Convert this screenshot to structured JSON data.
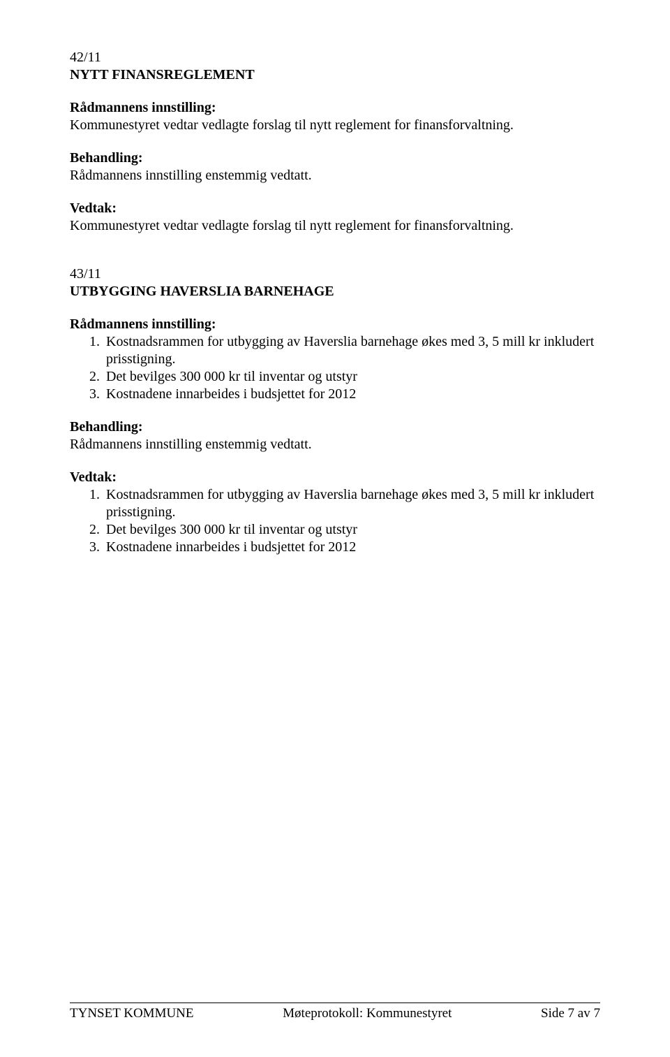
{
  "colors": {
    "text": "#000000",
    "background": "#ffffff",
    "rule": "#000000"
  },
  "typography": {
    "family": "Times New Roman",
    "body_size_pt": 12,
    "line_height": 1.25
  },
  "section1": {
    "case_no": "42/11",
    "title": "NYTT FINANSREGLEMENT",
    "radmannens_label": "Rådmannens innstilling:",
    "radmannens_text": "Kommunestyret vedtar vedlagte forslag til nytt reglement for finansforvaltning.",
    "behandling_label": "Behandling:",
    "behandling_text": "Rådmannens innstilling enstemmig vedtatt.",
    "vedtak_label": "Vedtak:",
    "vedtak_text": "Kommunestyret vedtar vedlagte forslag til nytt reglement for finansforvaltning."
  },
  "section2": {
    "case_no": "43/11",
    "title": "UTBYGGING HAVERSLIA BARNEHAGE",
    "radmannens_label": "Rådmannens innstilling:",
    "radmannens_items": [
      {
        "n": "1.",
        "t": "Kostnadsrammen for utbygging av Haverslia barnehage økes med 3, 5 mill kr inkludert prisstigning."
      },
      {
        "n": "2.",
        "t": "Det bevilges 300 000 kr til inventar og utstyr"
      },
      {
        "n": "3.",
        "t": "Kostnadene innarbeides i budsjettet for 2012"
      }
    ],
    "behandling_label": "Behandling:",
    "behandling_text": "Rådmannens innstilling enstemmig vedtatt.",
    "vedtak_label": "Vedtak:",
    "vedtak_items": [
      {
        "n": "1.",
        "t": "Kostnadsrammen for utbygging av Haverslia barnehage økes med 3, 5 mill kr inkludert prisstigning."
      },
      {
        "n": "2.",
        "t": "Det bevilges 300 000 kr til inventar og utstyr"
      },
      {
        "n": "3.",
        "t": "Kostnadene innarbeides i budsjettet for 2012"
      }
    ]
  },
  "footer": {
    "left": "TYNSET KOMMUNE",
    "center": "Møteprotokoll: Kommunestyret",
    "right": "Side 7 av 7"
  }
}
